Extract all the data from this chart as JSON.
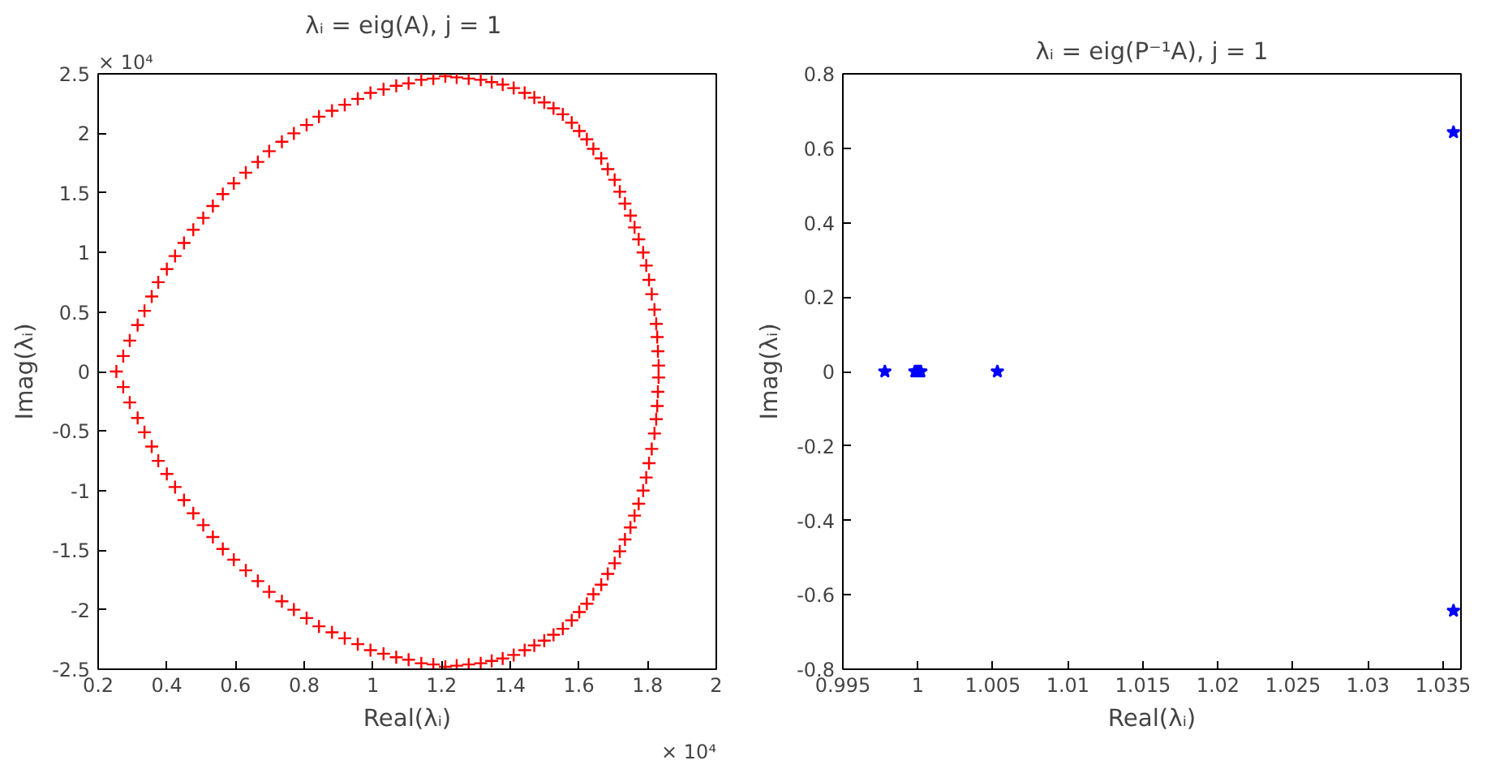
{
  "chart_data": [
    {
      "type": "scatter",
      "title": "λᵢ = eig(A),  j = 1",
      "xlabel": "Real(λᵢ)",
      "ylabel": "Imag(λᵢ)",
      "marker": "cross",
      "annotations": [
        "× 10⁴",
        "× 10⁴"
      ],
      "xlim": [
        0.2,
        2
      ],
      "xticks": [
        0.2,
        0.4,
        0.6,
        0.8,
        1,
        1.2,
        1.4,
        1.6,
        1.8,
        2
      ],
      "ylim": [
        -2.5,
        2.5
      ],
      "yticks": [
        -2.5,
        -2,
        -1.5,
        -1,
        -0.5,
        0,
        0.5,
        1,
        1.5,
        2,
        2.5
      ],
      "series": [
        {
          "color": "#ff0000",
          "x": [
            0.253,
            0.273,
            0.292,
            0.315,
            0.335,
            0.356,
            0.375,
            0.4,
            0.424,
            0.45,
            0.477,
            0.506,
            0.534,
            0.563,
            0.595,
            0.63,
            0.665,
            0.698,
            0.735,
            0.77,
            0.807,
            0.843,
            0.881,
            0.918,
            0.956,
            0.993,
            1.031,
            1.068,
            1.104,
            1.141,
            1.176,
            1.211,
            1.244,
            1.279,
            1.314,
            1.346,
            1.378,
            1.41,
            1.442,
            1.47,
            1.499,
            1.526,
            1.553,
            1.579,
            1.601,
            1.623,
            1.642,
            1.665,
            1.684,
            1.704,
            1.719,
            1.734,
            1.75,
            1.762,
            1.774,
            1.787,
            1.796,
            1.804,
            1.812,
            1.82,
            1.825,
            1.828,
            1.83,
            1.832,
            1.832,
            1.83,
            1.828,
            1.825,
            1.82,
            1.812,
            1.804,
            1.796,
            1.787,
            1.774,
            1.762,
            1.75,
            1.734,
            1.719,
            1.704,
            1.684,
            1.665,
            1.642,
            1.623,
            1.601,
            1.579,
            1.553,
            1.526,
            1.499,
            1.47,
            1.442,
            1.41,
            1.378,
            1.346,
            1.314,
            1.279,
            1.244,
            1.211,
            1.176,
            1.141,
            1.104,
            1.068,
            1.031,
            0.993,
            0.956,
            0.918,
            0.881,
            0.843,
            0.807,
            0.77,
            0.735,
            0.698,
            0.665,
            0.63,
            0.595,
            0.563,
            0.534,
            0.506,
            0.477,
            0.45,
            0.424,
            0.4,
            0.375,
            0.356,
            0.335,
            0.315,
            0.292,
            0.273
          ],
          "values": [
            0,
            0.13,
            0.26,
            0.39,
            0.51,
            0.63,
            0.75,
            0.86,
            0.97,
            1.08,
            1.19,
            1.29,
            1.39,
            1.49,
            1.58,
            1.67,
            1.76,
            1.85,
            1.93,
            2.0,
            2.07,
            2.14,
            2.19,
            2.24,
            2.29,
            2.34,
            2.37,
            2.4,
            2.42,
            2.45,
            2.46,
            2.48,
            2.47,
            2.46,
            2.45,
            2.43,
            2.41,
            2.38,
            2.34,
            2.3,
            2.26,
            2.21,
            2.16,
            2.09,
            2.02,
            1.95,
            1.87,
            1.79,
            1.7,
            1.61,
            1.51,
            1.41,
            1.31,
            1.21,
            1.11,
            1.0,
            0.89,
            0.77,
            0.65,
            0.52,
            0.4,
            0.29,
            0.17,
            0.05,
            -0.05,
            -0.17,
            -0.29,
            -0.4,
            -0.52,
            -0.65,
            -0.77,
            -0.89,
            -1.0,
            -1.11,
            -1.21,
            -1.31,
            -1.41,
            -1.51,
            -1.61,
            -1.7,
            -1.79,
            -1.87,
            -1.95,
            -2.02,
            -2.09,
            -2.16,
            -2.21,
            -2.26,
            -2.3,
            -2.34,
            -2.38,
            -2.41,
            -2.43,
            -2.45,
            -2.46,
            -2.47,
            -2.48,
            -2.46,
            -2.45,
            -2.42,
            -2.4,
            -2.37,
            -2.34,
            -2.29,
            -2.24,
            -2.19,
            -2.14,
            -2.07,
            -2.0,
            -1.93,
            -1.85,
            -1.76,
            -1.67,
            -1.58,
            -1.49,
            -1.39,
            -1.29,
            -1.19,
            -1.08,
            -0.97,
            -0.86,
            -0.75,
            -0.63,
            -0.51,
            -0.39,
            -0.26,
            -0.13
          ]
        }
      ]
    },
    {
      "type": "scatter",
      "title": "λᵢ = eig(P⁻¹A), j = 1",
      "xlabel": "Real(λᵢ)",
      "ylabel": "Imag(λᵢ)",
      "marker": "star",
      "xlim": [
        0.995,
        1.0362
      ],
      "xticks": [
        0.995,
        1,
        1.005,
        1.01,
        1.015,
        1.02,
        1.025,
        1.03,
        1.035
      ],
      "ylim": [
        -0.8,
        0.8
      ],
      "yticks": [
        -0.8,
        -0.6,
        -0.4,
        -0.2,
        0,
        0.2,
        0.4,
        0.6,
        0.8
      ],
      "series": [
        {
          "color": "#0000ff",
          "x": [
            0.9978,
            0.9998,
            0.9999,
            1.0,
            1.0001,
            1.0002,
            1.0053,
            1.0357,
            1.0357
          ],
          "values": [
            0,
            0,
            0,
            0,
            0,
            0,
            0,
            0.643,
            -0.643
          ]
        }
      ]
    }
  ]
}
